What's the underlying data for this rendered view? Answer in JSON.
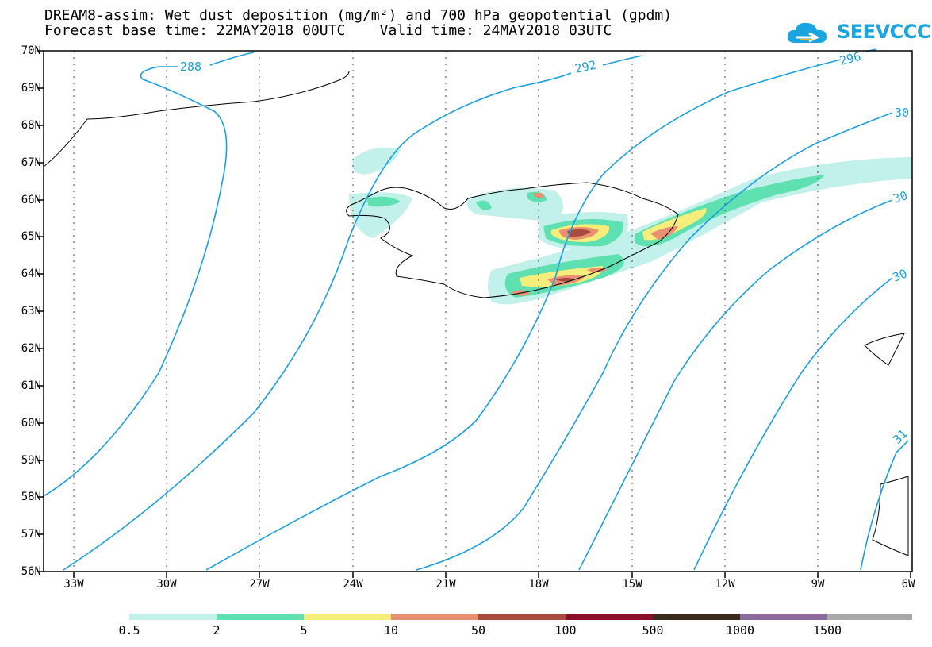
{
  "header": {
    "line1": "DREAM8-assim: Wet dust deposition (mg/m²) and 700 hPa geopotential (gpdm)",
    "line2": "Forecast base time: 22MAY2018 00UTC    Valid time: 24MAY2018 03UTC"
  },
  "logo": {
    "text": "SEEVCCC",
    "icon": "cloud-logo-icon",
    "color": "#1ba5e0"
  },
  "axes": {
    "lat_labels": [
      "70N",
      "69N",
      "68N",
      "67N",
      "66N",
      "65N",
      "64N",
      "63N",
      "62N",
      "61N",
      "60N",
      "59N",
      "58N",
      "57N",
      "56N"
    ],
    "lon_labels": [
      "33W",
      "30W",
      "27W",
      "24W",
      "21W",
      "18W",
      "15W",
      "12W",
      "9W",
      "6W"
    ]
  },
  "contours": {
    "color": "#1a9fe0",
    "labels": [
      "288",
      "292",
      "296",
      "30",
      "30",
      "30",
      "31"
    ]
  },
  "colorbar": {
    "colors": [
      "#c2f0ea",
      "#5ee0b0",
      "#f5ee7a",
      "#e89070",
      "#a84a40",
      "#8a0f2a",
      "#3a2a20",
      "#8c6c9c",
      "#a8a8a8"
    ],
    "labels": [
      "0.5",
      "2",
      "5",
      "10",
      "50",
      "100",
      "500",
      "1000",
      "1500"
    ]
  }
}
